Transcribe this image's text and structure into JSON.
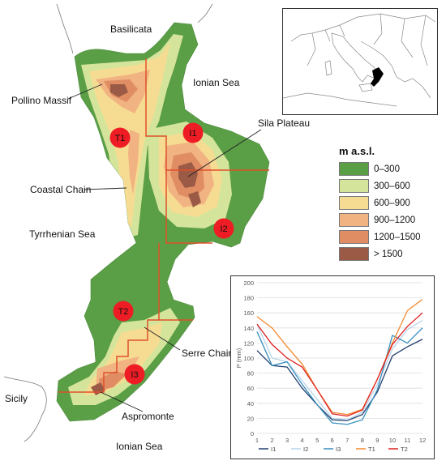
{
  "regions": {
    "basilicata": "Basilicata",
    "ionian_sea_north": "Ionian Sea",
    "pollino": "Pollino Massif",
    "sila": "Sila Plateau",
    "coastal_chain": "Coastal Chain",
    "tyrrhenian_sea": "Tyrrhenian Sea",
    "serre_chain": "Serre Chain",
    "sicily": "Sicily",
    "aspromonte": "Aspromonte",
    "ionian_sea_south": "Ionian Sea"
  },
  "stations": [
    "T1",
    "I1",
    "I2",
    "T2",
    "I3"
  ],
  "legend": {
    "title": "m a.s.l.",
    "classes": [
      {
        "label": "0–300",
        "color": "#5a9e46"
      },
      {
        "label": "300–600",
        "color": "#d4e59b"
      },
      {
        "label": "600–900",
        "color": "#f6dc93"
      },
      {
        "label": "900–1200",
        "color": "#f1b381"
      },
      {
        "label": "1200–1500",
        "color": "#e08d64"
      },
      {
        "label": "> 1500",
        "color": "#9b5a45"
      }
    ]
  },
  "colors": {
    "station": "#ee1c24",
    "boundary": "#e0502a"
  },
  "chart_data": {
    "type": "line",
    "x": [
      1,
      2,
      3,
      4,
      5,
      6,
      7,
      8,
      9,
      10,
      11,
      12
    ],
    "ylabel": "P (mm)",
    "ylim": [
      0,
      200
    ],
    "yticks": [
      0,
      20,
      40,
      60,
      80,
      100,
      120,
      140,
      160,
      180,
      200
    ],
    "grid": true,
    "legend_position": "bottom",
    "series": [
      {
        "name": "I1",
        "color": "#1f3f6e",
        "values": [
          110,
          90,
          88,
          60,
          38,
          18,
          17,
          25,
          55,
          103,
          115,
          125
        ]
      },
      {
        "name": "I2",
        "color": "#b8d4ea",
        "values": [
          145,
          100,
          95,
          70,
          45,
          20,
          18,
          28,
          65,
          112,
          138,
          150
        ]
      },
      {
        "name": "I3",
        "color": "#3a8fbe",
        "values": [
          135,
          90,
          95,
          65,
          38,
          14,
          12,
          18,
          58,
          130,
          120,
          140
        ]
      },
      {
        "name": "T1",
        "color": "#f28a30",
        "values": [
          155,
          140,
          115,
          92,
          58,
          28,
          25,
          32,
          72,
          120,
          163,
          178
        ]
      },
      {
        "name": "T2",
        "color": "#e02020",
        "values": [
          145,
          118,
          100,
          88,
          58,
          26,
          23,
          31,
          72,
          118,
          142,
          160
        ]
      }
    ]
  }
}
